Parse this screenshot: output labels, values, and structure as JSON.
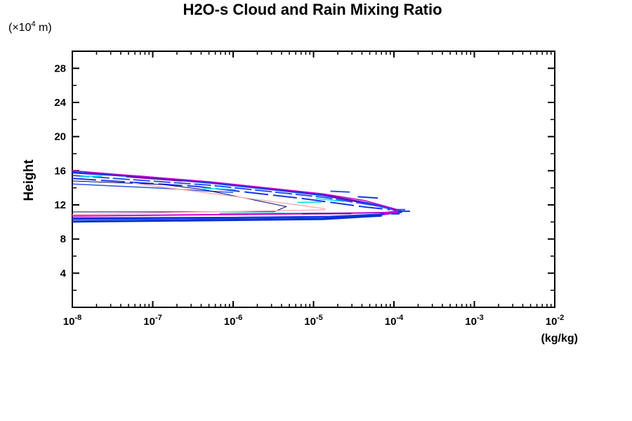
{
  "chart_data": {
    "type": "contour",
    "title": "H2O-s Cloud and Rain Mixing Ratio",
    "xlabel": "(kg/kg)",
    "ylabel": "Height",
    "y_unit_prefix": "(×10",
    "y_unit_sup": "4",
    "y_unit_suffix": " m)",
    "x_scale": "log10",
    "x_tick_base": "10",
    "x_range_exp": [
      -8,
      -2
    ],
    "x_major_tick_exponents": [
      -8,
      -7,
      -6,
      -5,
      -4,
      -3,
      -2
    ],
    "x_minor_multiples": [
      2,
      3,
      4,
      5,
      6,
      7,
      8,
      9
    ],
    "y_range": [
      0,
      30
    ],
    "y_major_ticks": [
      4,
      8,
      12,
      16,
      20,
      24,
      28
    ],
    "y_minor_ticks": [
      2,
      6,
      10,
      14,
      18,
      22,
      26,
      30
    ],
    "axis_color": "#000000",
    "background": "#ffffff",
    "legend": "none",
    "grid": false,
    "contours": [
      {
        "name": "top-blue-1",
        "color": "#1636e8",
        "width": 3,
        "points": [
          [
            -8,
            15.8
          ],
          [
            -7.15,
            15.3
          ],
          [
            -6.28,
            14.6
          ],
          [
            -5.4,
            13.7
          ],
          [
            -4.88,
            13.15
          ],
          [
            -4.36,
            12.25
          ],
          [
            -4.05,
            11.6
          ],
          [
            -3.9,
            11.2
          ]
        ]
      },
      {
        "name": "top-blue-2",
        "color": "#2a52f0",
        "width": 2,
        "dash": "24 5",
        "points": [
          [
            -8,
            15.45
          ],
          [
            -6.28,
            14.3
          ],
          [
            -4.88,
            12.9
          ],
          [
            -4.19,
            11.85
          ],
          [
            -3.97,
            11.35
          ]
        ]
      },
      {
        "name": "top-blue-3",
        "color": "#1636e8",
        "width": 2,
        "dash": "34 7",
        "points": [
          [
            -8,
            15.1
          ],
          [
            -6.45,
            14.15
          ],
          [
            -5.14,
            12.75
          ],
          [
            -4.36,
            11.75
          ],
          [
            -4.05,
            11.45
          ]
        ]
      },
      {
        "name": "top-blue-4",
        "color": "#2a52f0",
        "width": 1.5,
        "points": [
          [
            -8,
            14.45
          ],
          [
            -6.89,
            13.95
          ],
          [
            -6.0,
            13.45
          ]
        ]
      },
      {
        "name": "top-magenta",
        "color": "#cc00cc",
        "width": 1.5,
        "points": [
          [
            -8,
            16.0
          ],
          [
            -6.28,
            14.7
          ],
          [
            -4.88,
            13.3
          ],
          [
            -4.36,
            12.5
          ],
          [
            -4.03,
            11.65
          ],
          [
            -3.92,
            11.35
          ]
        ]
      },
      {
        "name": "purple-frag-1",
        "color": "#7a00a8",
        "width": 2,
        "points": [
          [
            -7.33,
            15.3
          ],
          [
            -6.63,
            14.8
          ]
        ]
      },
      {
        "name": "purple-frag-2",
        "color": "#7a00a8",
        "width": 2,
        "points": [
          [
            -4.79,
            13.0
          ],
          [
            -4.44,
            12.4
          ]
        ]
      },
      {
        "name": "cyan-frag-1",
        "color": "#00dede",
        "width": 1.5,
        "points": [
          [
            -7.9,
            15.35
          ],
          [
            -7.63,
            15.35
          ]
        ]
      },
      {
        "name": "cyan-frag-2",
        "color": "#00dede",
        "width": 1.5,
        "points": [
          [
            -6.37,
            13.95
          ],
          [
            -5.97,
            13.8
          ]
        ]
      },
      {
        "name": "cyan-frag-3",
        "color": "#00dede",
        "width": 1.5,
        "points": [
          [
            -4.97,
            12.75
          ],
          [
            -4.62,
            12.4
          ]
        ]
      },
      {
        "name": "cyan-frag-4",
        "color": "#00dede",
        "width": 1.5,
        "points": [
          [
            -5.2,
            12.3
          ],
          [
            -4.9,
            12.33
          ]
        ]
      },
      {
        "name": "navy-wedge",
        "color": "#000070",
        "width": 1,
        "points": [
          [
            -8,
            14.8
          ],
          [
            -6.89,
            14.4
          ],
          [
            -6.37,
            13.8
          ],
          [
            -5.34,
            11.8
          ],
          [
            -5.49,
            11.2
          ],
          [
            -8,
            11.18
          ]
        ]
      },
      {
        "name": "pink-wedge",
        "color": "#ffb0b8",
        "width": 1.5,
        "points": [
          [
            -7.25,
            14.55
          ],
          [
            -6.0,
            13.0
          ],
          [
            -4.86,
            11.56
          ],
          [
            -4.86,
            11.42
          ],
          [
            -6.72,
            11.1
          ],
          [
            -8,
            10.85
          ]
        ]
      },
      {
        "name": "cyan-bottom",
        "color": "#00dede",
        "width": 1.5,
        "points": [
          [
            -6.17,
            11.0
          ],
          [
            -4.5,
            11.05
          ],
          [
            -3.98,
            11.15
          ]
        ]
      },
      {
        "name": "magenta-bottom",
        "color": "#cc00cc",
        "width": 2,
        "points": [
          [
            -8,
            10.7
          ],
          [
            -6.28,
            10.85
          ],
          [
            -4.79,
            11.0
          ],
          [
            -4.03,
            11.1
          ]
        ]
      },
      {
        "name": "purple-frag-3",
        "color": "#7a00a8",
        "width": 2,
        "points": [
          [
            -5.14,
            10.95
          ],
          [
            -4.53,
            11.0
          ]
        ]
      },
      {
        "name": "navy-bottom",
        "color": "#000070",
        "width": 1,
        "points": [
          [
            -8,
            10.5
          ],
          [
            -6.3,
            10.55
          ],
          [
            -5.2,
            10.6
          ]
        ]
      },
      {
        "name": "blue-bottom-1",
        "color": "#1636e8",
        "width": 3,
        "points": [
          [
            -8,
            10.35
          ],
          [
            -6.28,
            10.45
          ],
          [
            -4.79,
            10.6
          ],
          [
            -4.19,
            10.85
          ],
          [
            -3.9,
            11.18
          ]
        ]
      },
      {
        "name": "blue-bottom-2",
        "color": "#0030cc",
        "width": 3,
        "points": [
          [
            -8,
            10.05
          ],
          [
            -6.28,
            10.2
          ],
          [
            -4.88,
            10.35
          ],
          [
            -4.15,
            10.75
          ]
        ]
      },
      {
        "name": "tip-magenta",
        "color": "#cc00cc",
        "width": 4,
        "points": [
          [
            -4.12,
            11.0
          ],
          [
            -3.95,
            11.2
          ]
        ]
      },
      {
        "name": "tip-dash-1",
        "color": "#1636e8",
        "width": 2,
        "points": [
          [
            -3.9,
            11.25
          ],
          [
            -3.8,
            11.25
          ]
        ]
      },
      {
        "name": "tip-dash-2",
        "color": "#2a52f0",
        "width": 2,
        "points": [
          [
            -3.98,
            11.45
          ],
          [
            -3.86,
            11.45
          ]
        ]
      },
      {
        "name": "tip-dash-3",
        "color": "#1636e8",
        "width": 2,
        "points": [
          [
            -4.03,
            10.95
          ],
          [
            -3.93,
            10.95
          ]
        ]
      },
      {
        "name": "scatter-blue-1",
        "color": "#2a52f0",
        "width": 2,
        "points": [
          [
            -4.79,
            13.6
          ],
          [
            -4.55,
            13.5
          ]
        ]
      },
      {
        "name": "scatter-blue-2",
        "color": "#1636e8",
        "width": 2,
        "points": [
          [
            -4.45,
            12.95
          ],
          [
            -4.2,
            12.8
          ]
        ]
      }
    ]
  }
}
